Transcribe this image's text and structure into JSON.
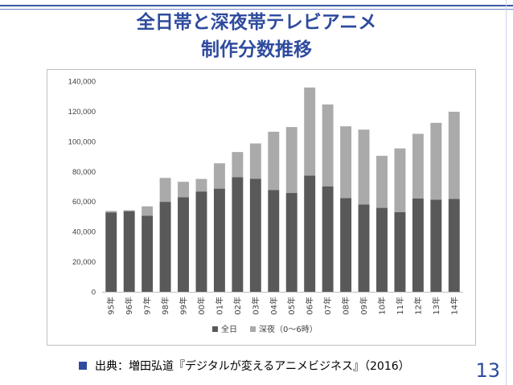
{
  "slide": {
    "title_line1": "全日帯と深夜帯テレビアニメ",
    "title_line2": "制作分数推移",
    "source": "出典：増田弘道『デジタルが変えるアニメビジネス』（2016）",
    "page_number": "13",
    "accent_color": "#2e4b9e"
  },
  "chart_data": {
    "type": "bar",
    "stacked": true,
    "title": "",
    "xlabel": "",
    "ylabel": "",
    "ylim": [
      0,
      140000
    ],
    "yticks": [
      0,
      20000,
      40000,
      60000,
      80000,
      100000,
      120000,
      140000
    ],
    "ytick_labels": [
      "0",
      "20,000",
      "40,000",
      "60,000",
      "80,000",
      "100,000",
      "120,000",
      "140,000"
    ],
    "grid": false,
    "legend_position": "bottom",
    "categories": [
      "95年",
      "96年",
      "97年",
      "98年",
      "99年",
      "00年",
      "01年",
      "02年",
      "03年",
      "04年",
      "05年",
      "06年",
      "07年",
      "08年",
      "09年",
      "10年",
      "11年",
      "12年",
      "13年",
      "14年"
    ],
    "series": [
      {
        "name": "全日",
        "color": "#595959",
        "values": [
          52800,
          53600,
          50600,
          59800,
          62800,
          66700,
          68600,
          76200,
          75100,
          67600,
          65700,
          77200,
          70000,
          62300,
          58100,
          55800,
          53000,
          62000,
          61300,
          61700
        ]
      },
      {
        "name": "深夜（0～6時）",
        "color": "#aaaaaa",
        "values": [
          900,
          600,
          6200,
          15900,
          10300,
          8300,
          16800,
          16700,
          23500,
          38800,
          43800,
          58600,
          54500,
          47700,
          49700,
          34600,
          42300,
          43000,
          51000,
          58000
        ]
      }
    ]
  }
}
